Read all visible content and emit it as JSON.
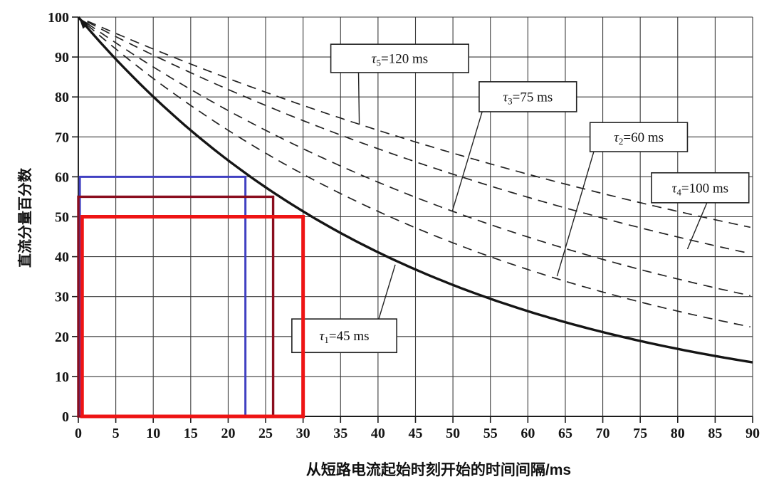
{
  "page": {
    "background": "#ffffff"
  },
  "chart_data": {
    "type": "line",
    "title": "",
    "xlabel": "从短路电流起始时刻开始的时间间隔/ms",
    "ylabel": "直流分量百分数",
    "xlim": [
      0,
      90
    ],
    "ylim": [
      0,
      100
    ],
    "x_ticks": [
      0,
      5,
      10,
      15,
      20,
      25,
      30,
      35,
      40,
      45,
      50,
      55,
      60,
      65,
      70,
      75,
      80,
      85,
      90
    ],
    "y_ticks": [
      0,
      10,
      20,
      30,
      40,
      50,
      60,
      70,
      80,
      90,
      100
    ],
    "grid": "on",
    "legend_position": "inline-callout-boxes",
    "curve_model": "percent = 100 * exp(-t / tau_ms)",
    "series": [
      {
        "name": "tau1",
        "label": "τ1=45 ms",
        "tau_ms": 45,
        "line": "solid",
        "color": "#151515",
        "width": 3.4,
        "arrow_at_origin": true,
        "start": [
          0,
          100
        ],
        "value_at_90ms": 13.5
      },
      {
        "name": "tau2",
        "label": "τ2=60 ms",
        "tau_ms": 60,
        "line": "dashed",
        "color": "#232323",
        "width": 1.7,
        "start": [
          0,
          100
        ],
        "value_at_90ms": 22.3
      },
      {
        "name": "tau3",
        "label": "τ3=75 ms",
        "tau_ms": 75,
        "line": "dashed",
        "color": "#232323",
        "width": 1.7,
        "start": [
          0,
          100
        ],
        "value_at_90ms": 30.1
      },
      {
        "name": "tau4",
        "label": "τ4=100 ms",
        "tau_ms": 100,
        "line": "dashed",
        "color": "#232323",
        "width": 1.7,
        "start": [
          0,
          100
        ],
        "value_at_90ms": 40.7
      },
      {
        "name": "tau5",
        "label": "τ5=120 ms",
        "tau_ms": 120,
        "line": "dashed",
        "color": "#232323",
        "width": 1.7,
        "start": [
          0,
          100
        ],
        "value_at_90ms": 47.2
      }
    ],
    "annotations": [
      {
        "name": "callout-tau5",
        "tau": "τ",
        "sub": "5",
        "eq": "=120 ms",
        "box": {
          "t0": 33.7,
          "t1": 52.1,
          "v0": 86.1,
          "v1": 93.2
        },
        "leader": {
          "x1": 37.4,
          "y1": 86.1,
          "x2": 37.5,
          "y2": 73.1
        }
      },
      {
        "name": "callout-tau3",
        "tau": "τ",
        "sub": "3",
        "eq": "=75 ms",
        "box": {
          "t0": 53.5,
          "t1": 66.5,
          "v0": 76.3,
          "v1": 83.8
        },
        "leader": {
          "x1": 53.9,
          "y1": 76.3,
          "x2": 49.9,
          "y2": 51.3
        }
      },
      {
        "name": "callout-tau2",
        "tau": "τ",
        "sub": "2",
        "eq": "=60 ms",
        "box": {
          "t0": 68.3,
          "t1": 81.3,
          "v0": 66.3,
          "v1": 73.6
        },
        "leader": {
          "x1": 68.8,
          "y1": 66.3,
          "x2": 63.9,
          "y2": 35.1
        }
      },
      {
        "name": "callout-tau4",
        "tau": "τ",
        "sub": "4",
        "eq": "=100 ms",
        "box": {
          "t0": 76.5,
          "t1": 89.5,
          "v0": 53.5,
          "v1": 61.0
        },
        "leader": {
          "x1": 83.9,
          "y1": 53.5,
          "x2": 81.3,
          "y2": 41.9
        }
      },
      {
        "name": "callout-tau1",
        "tau": "τ",
        "sub": "1",
        "eq": "=45 ms",
        "box": {
          "t0": 28.5,
          "t1": 42.5,
          "v0": 16.0,
          "v1": 24.4
        },
        "leader": {
          "x1": 40.1,
          "y1": 24.4,
          "x2": 42.3,
          "y2": 38.0
        }
      }
    ],
    "overlay_rectangles": [
      {
        "name": "overlay-rect-blue",
        "color": "#4040c2",
        "stroke_width": 3.0,
        "t0": 0.2,
        "t1": 22.3,
        "v0": 0,
        "v1": 60
      },
      {
        "name": "overlay-rect-maroon",
        "color": "#8a0d1e",
        "stroke_width": 3.4,
        "t0": 0.0,
        "t1": 26.0,
        "v0": 0,
        "v1": 55
      },
      {
        "name": "overlay-rect-red",
        "color": "#ee1414",
        "stroke_width": 5.0,
        "t0": 0.5,
        "t1": 30.0,
        "v0": 0,
        "v1": 50
      }
    ],
    "style": {
      "grid_color": "#3a3a3a",
      "axis_color": "#1c1c1c",
      "callout_fill": "#ffffff",
      "callout_border": "#222222",
      "dash_pattern": "13 9"
    }
  }
}
